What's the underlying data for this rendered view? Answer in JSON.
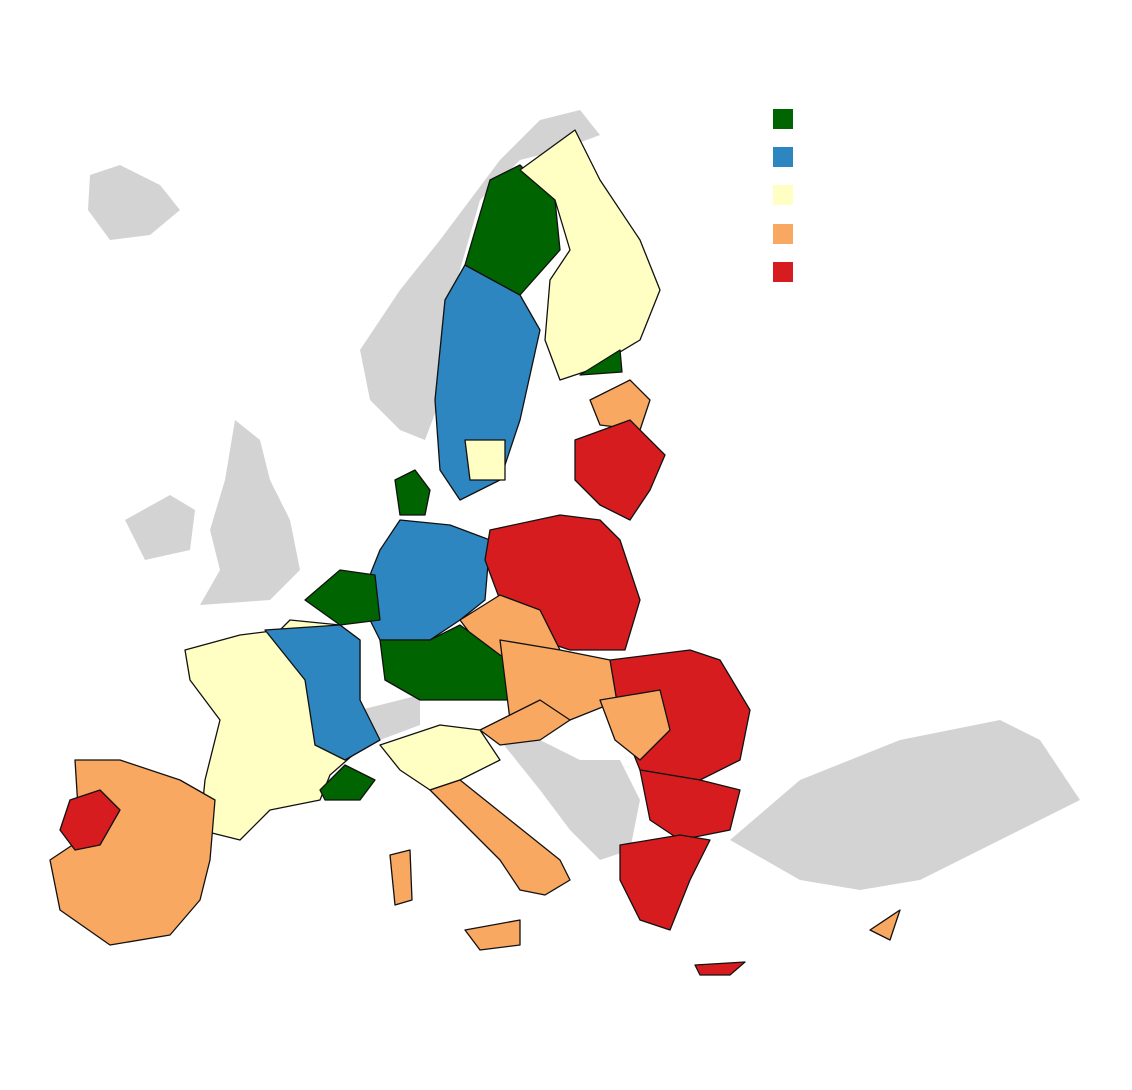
{
  "legend": {
    "colors": [
      "#006400",
      "#2e86c1",
      "#ffffc4",
      "#f9a862",
      "#d71c1f"
    ]
  },
  "background_land_color": "#d3d3d3"
}
